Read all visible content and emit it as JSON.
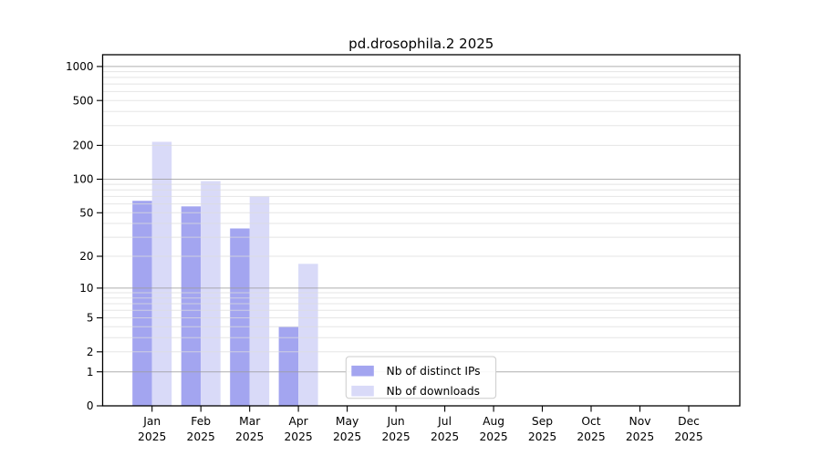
{
  "title": "pd.drosophila.2 2025",
  "colors": {
    "background": "#ffffff",
    "ips_bar": "#a3a5f0",
    "downloads_bar": "#d9daf8",
    "grid_major": "#9b9b9b",
    "grid_minor": "#dcdcdc",
    "axis": "#000000",
    "text": "#000000",
    "legend_border": "#cccccc",
    "legend_bg": "#ffffff"
  },
  "legend": {
    "items": [
      {
        "label": "Nb of distinct IPs",
        "swatch": "ips-swatch"
      },
      {
        "label": "Nb of downloads",
        "swatch": "downloads-swatch"
      }
    ]
  },
  "chart_data": {
    "type": "bar",
    "title": "pd.drosophila.2 2025",
    "xlabel": "",
    "ylabel": "",
    "y_scale": "log1p",
    "ylim": [
      0,
      1260
    ],
    "grid": "on",
    "legend_position": "lower-center-inside",
    "y_ticks": [
      0,
      1,
      2,
      5,
      10,
      20,
      50,
      100,
      200,
      500,
      1000
    ],
    "minor_grid_values": [
      2,
      3,
      4,
      5,
      6,
      7,
      8,
      9,
      20,
      30,
      40,
      50,
      60,
      70,
      80,
      90,
      200,
      300,
      400,
      500,
      600,
      700,
      800,
      900
    ],
    "major_grid_values": [
      1,
      10,
      100,
      1000
    ],
    "categories": [
      "Jan",
      "Feb",
      "Mar",
      "Apr",
      "May",
      "Jun",
      "Jul",
      "Aug",
      "Sep",
      "Oct",
      "Nov",
      "Dec"
    ],
    "year_label": "2025",
    "series": [
      {
        "name": "Nb of distinct IPs",
        "color_key": "ips_bar",
        "values": [
          64,
          57,
          36,
          4,
          null,
          null,
          null,
          null,
          null,
          null,
          null,
          null
        ]
      },
      {
        "name": "Nb of downloads",
        "color_key": "downloads_bar",
        "values": [
          215,
          96,
          70,
          17,
          null,
          null,
          null,
          null,
          null,
          null,
          null,
          null
        ]
      }
    ]
  }
}
